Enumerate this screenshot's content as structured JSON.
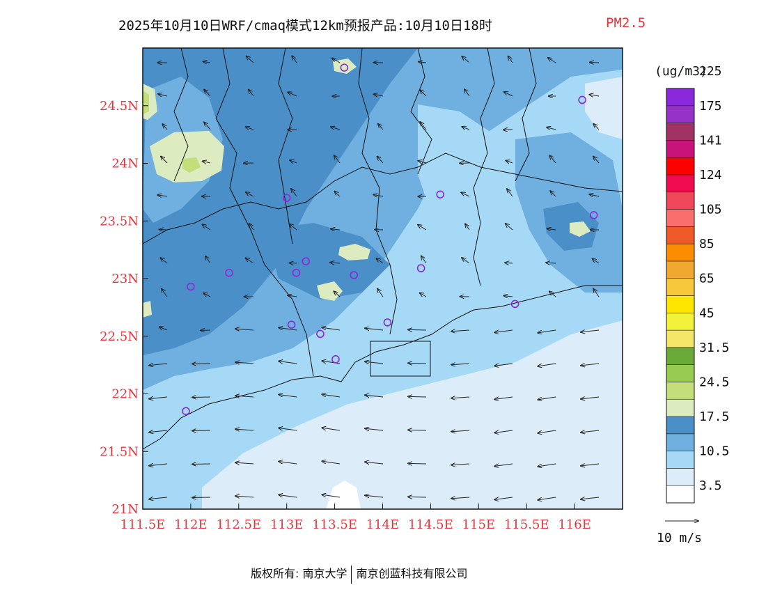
{
  "header": {
    "title": "2025年10月10日WRF/cmaq模式12km预报产品:10月10日18时",
    "variable": "PM2.5"
  },
  "map": {
    "lon_range": [
      111.5,
      116.5
    ],
    "lat_range": [
      21.0,
      25.0
    ],
    "lon_ticks": [
      {
        "value": 111.5,
        "label": "111.5E"
      },
      {
        "value": 112.0,
        "label": "112E"
      },
      {
        "value": 112.5,
        "label": "112.5E"
      },
      {
        "value": 113.0,
        "label": "113E"
      },
      {
        "value": 113.5,
        "label": "113.5E"
      },
      {
        "value": 114.0,
        "label": "114E"
      },
      {
        "value": 114.5,
        "label": "114.5E"
      },
      {
        "value": 115.0,
        "label": "115E"
      },
      {
        "value": 115.5,
        "label": "115.5E"
      },
      {
        "value": 116.0,
        "label": "116E"
      }
    ],
    "lat_ticks": [
      {
        "value": 21.0,
        "label": "21N"
      },
      {
        "value": 21.5,
        "label": "21.5N"
      },
      {
        "value": 22.0,
        "label": "22N"
      },
      {
        "value": 22.5,
        "label": "22.5N"
      },
      {
        "value": 23.0,
        "label": "23N"
      },
      {
        "value": 23.5,
        "label": "23.5N"
      },
      {
        "value": 24.0,
        "label": "24N"
      },
      {
        "value": 24.5,
        "label": "24.5N"
      }
    ],
    "stations": [
      {
        "lon": 113.6,
        "lat": 24.83
      },
      {
        "lon": 116.08,
        "lat": 24.55
      },
      {
        "lon": 113.0,
        "lat": 23.7
      },
      {
        "lon": 114.6,
        "lat": 23.73
      },
      {
        "lon": 116.2,
        "lat": 23.55
      },
      {
        "lon": 113.2,
        "lat": 23.15
      },
      {
        "lon": 112.4,
        "lat": 23.05
      },
      {
        "lon": 113.1,
        "lat": 23.05
      },
      {
        "lon": 113.7,
        "lat": 23.03
      },
      {
        "lon": 114.4,
        "lat": 23.09
      },
      {
        "lon": 112.0,
        "lat": 22.93
      },
      {
        "lon": 115.38,
        "lat": 22.78
      },
      {
        "lon": 113.05,
        "lat": 22.6
      },
      {
        "lon": 113.35,
        "lat": 22.52
      },
      {
        "lon": 114.05,
        "lat": 22.62
      },
      {
        "lon": 113.51,
        "lat": 22.3
      },
      {
        "lon": 111.95,
        "lat": 21.85
      }
    ]
  },
  "colorbar": {
    "unit": "(ug/m3)",
    "colors": [
      "#ffffff",
      "#dcecf8",
      "#a6d9f6",
      "#6fb0e0",
      "#4a8fc8",
      "#dcebc0",
      "#c3de7a",
      "#98cc50",
      "#6aaa38",
      "#f5e66a",
      "#f2f23c",
      "#ffe600",
      "#f7c83c",
      "#f0a830",
      "#fc8c00",
      "#f05a28",
      "#fa6e6e",
      "#f0465a",
      "#f00a50",
      "#ff0000",
      "#c8147a",
      "#a03264",
      "#9632c8",
      "#8c28dc"
    ],
    "labels": [
      "3.5",
      "10.5",
      "17.5",
      "24.5",
      "31.5",
      "45",
      "65",
      "85",
      "105",
      "124",
      "141",
      "175",
      "225"
    ]
  },
  "wind_legend": {
    "label": "10 m/s"
  },
  "footer": {
    "copyright": "版权所有: 南京大学",
    "company": "南京创蓝科技有限公司"
  }
}
